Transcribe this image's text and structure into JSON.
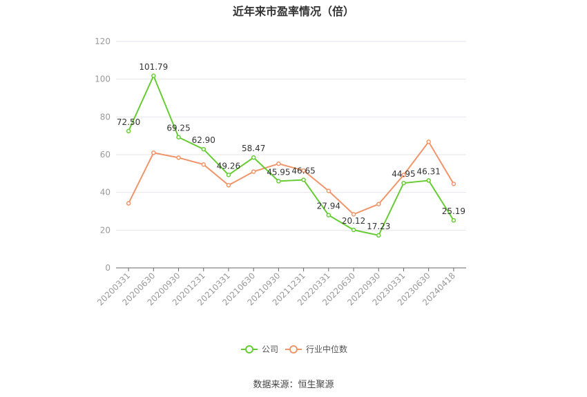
{
  "chart_data": {
    "type": "line",
    "title": "近年来市盈率情况（倍）",
    "xlabel": "",
    "ylabel": "",
    "ylim": [
      0,
      120
    ],
    "yticks": [
      0,
      20,
      40,
      60,
      80,
      100,
      120
    ],
    "categories": [
      "20200331",
      "20200630",
      "20200930",
      "20201231",
      "20210331",
      "20210630",
      "20210930",
      "20211231",
      "20220331",
      "20220630",
      "20220930",
      "20230331",
      "20230630",
      "20240418"
    ],
    "grid": true,
    "legend_position": "bottom-center",
    "series": [
      {
        "name": "公司",
        "color": "#66cc33",
        "values": [
          72.5,
          101.79,
          69.25,
          62.9,
          49.26,
          58.47,
          45.95,
          46.65,
          27.94,
          20.12,
          17.23,
          44.95,
          46.31,
          25.19
        ],
        "labels": [
          "72.50",
          "101.79",
          "69.25",
          "62.90",
          "49.26",
          "58.47",
          "45.95",
          "46.65",
          "27.94",
          "20.12",
          "17.23",
          "44.95",
          "46.31",
          "25.19"
        ]
      },
      {
        "name": "行业中位数",
        "color": "#f0956a",
        "values": [
          34.2,
          61.0,
          58.4,
          54.8,
          43.8,
          51.0,
          55.2,
          51.6,
          40.8,
          28.4,
          33.8,
          49.2,
          66.8,
          44.5
        ]
      }
    ]
  },
  "source_note": "数据来源：恒生聚源"
}
